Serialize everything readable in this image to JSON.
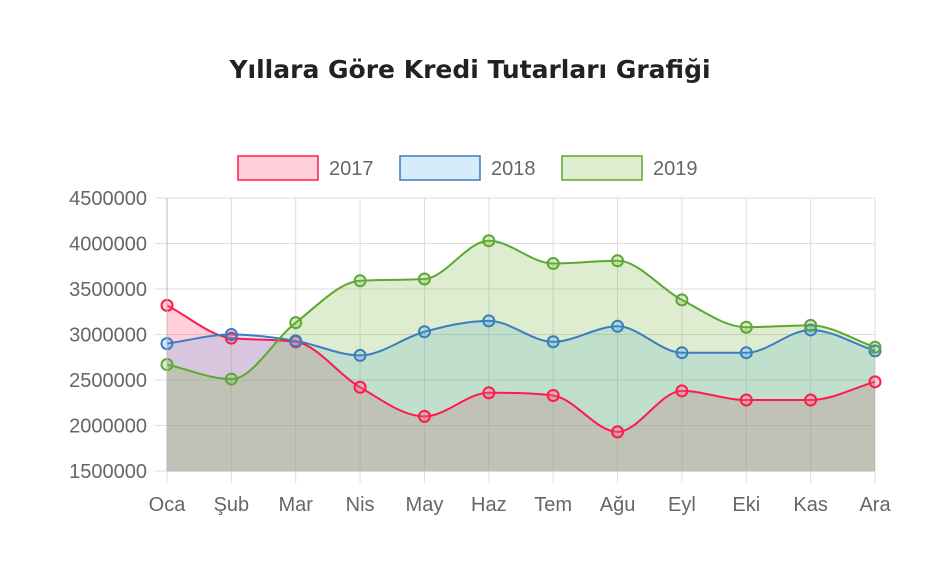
{
  "chart_data": {
    "type": "area",
    "title": "Yıllara Göre Kredi Tutarları Grafiği",
    "categories": [
      "Oca",
      "Şub",
      "Mar",
      "Nis",
      "May",
      "Haz",
      "Tem",
      "Ağu",
      "Eyl",
      "Eki",
      "Kas",
      "Ara"
    ],
    "ylim": [
      1500000,
      4500000
    ],
    "yticks": [
      "4500000",
      "4000000",
      "3500000",
      "3000000",
      "2500000",
      "2000000",
      "1500000"
    ],
    "xlabel": "",
    "ylabel": "",
    "grid": true,
    "legend_position": "top",
    "smooth": true,
    "series": [
      {
        "name": "2017",
        "values": [
          3320000,
          2960000,
          2920000,
          2420000,
          2100000,
          2360000,
          2330000,
          1930000,
          2380000,
          2280000,
          2280000,
          2480000
        ],
        "color": "#ff1a4e",
        "fill": "rgba(255, 99, 132, 0.3)"
      },
      {
        "name": "2018",
        "values": [
          2900000,
          3000000,
          2930000,
          2770000,
          3030000,
          3150000,
          2920000,
          3090000,
          2800000,
          2800000,
          3050000,
          2820000
        ],
        "color": "#3b7dc0",
        "fill": "rgba(54, 162, 235, 0.2)"
      },
      {
        "name": "2019",
        "values": [
          2670000,
          2510000,
          3130000,
          3590000,
          3610000,
          4030000,
          3780000,
          3810000,
          3380000,
          3080000,
          3100000,
          2860000
        ],
        "color": "#5da832",
        "fill": "rgba(123, 184, 64, 0.25)"
      }
    ]
  }
}
